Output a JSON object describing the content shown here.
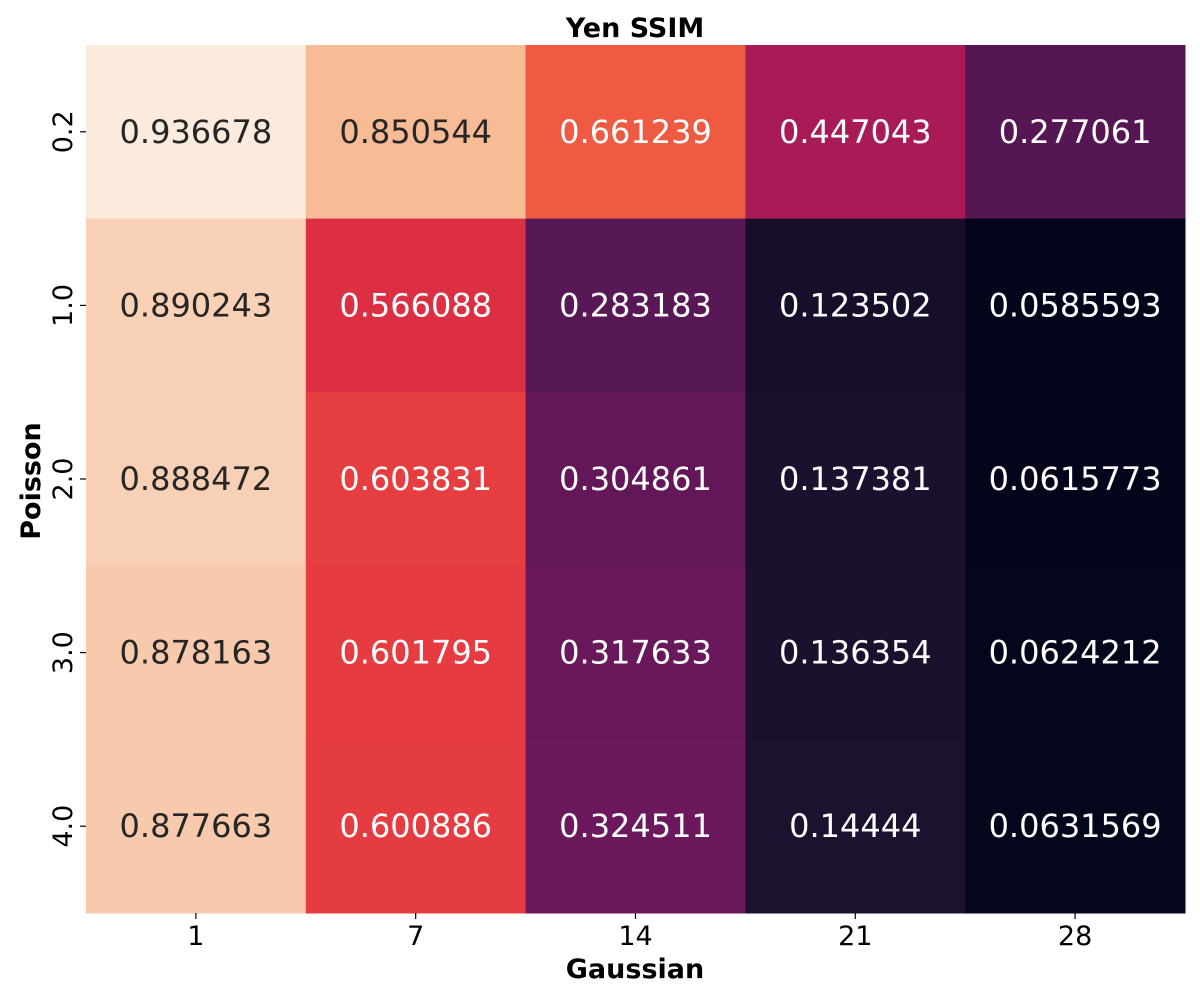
{
  "chart_data": {
    "type": "heatmap",
    "title": "Yen SSIM",
    "xlabel": "Gaussian",
    "ylabel": "Poisson",
    "x_categories": [
      "1",
      "7",
      "14",
      "21",
      "28"
    ],
    "y_categories": [
      "0.2",
      "1.0",
      "2.0",
      "3.0",
      "4.0"
    ],
    "values": [
      [
        0.936678,
        0.850544,
        0.661239,
        0.447043,
        0.277061
      ],
      [
        0.890243,
        0.566088,
        0.283183,
        0.123502,
        0.0585593
      ],
      [
        0.888472,
        0.603831,
        0.304861,
        0.137381,
        0.0615773
      ],
      [
        0.878163,
        0.601795,
        0.317633,
        0.136354,
        0.0624212
      ],
      [
        0.877663,
        0.600886,
        0.324511,
        0.14444,
        0.0631569
      ]
    ],
    "value_labels": [
      [
        "0.936678",
        "0.850544",
        "0.661239",
        "0.447043",
        "0.277061"
      ],
      [
        "0.890243",
        "0.566088",
        "0.283183",
        "0.123502",
        "0.0585593"
      ],
      [
        "0.888472",
        "0.603831",
        "0.304861",
        "0.137381",
        "0.0615773"
      ],
      [
        "0.878163",
        "0.601795",
        "0.317633",
        "0.136354",
        "0.0624212"
      ],
      [
        "0.877663",
        "0.600886",
        "0.324511",
        "0.14444",
        "0.0631569"
      ]
    ],
    "colormap": "rocket",
    "colorbar": false,
    "annotated": true
  }
}
